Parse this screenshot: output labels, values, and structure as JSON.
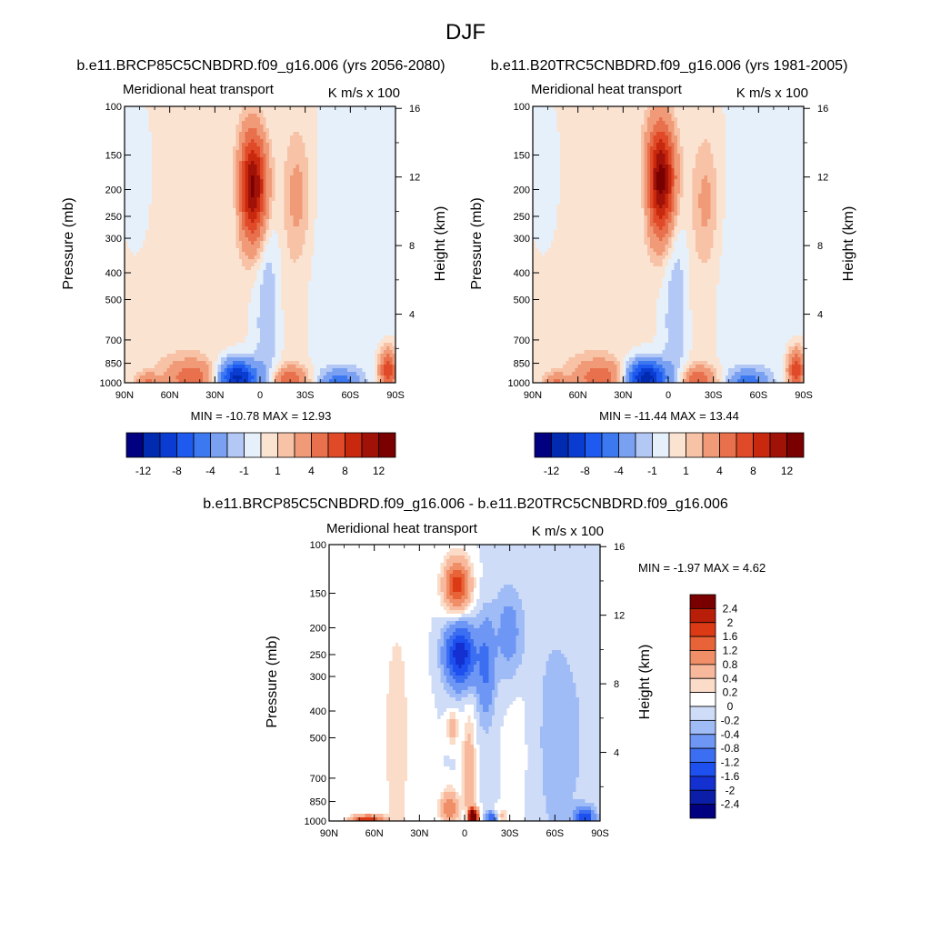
{
  "figure": {
    "title": "DJF"
  },
  "colors": {
    "model_scale": [
      "#000080",
      "#002ab0",
      "#0a3cd2",
      "#1e5af0",
      "#3c78f0",
      "#7aa0f2",
      "#b4c8f5",
      "#e6f0fa",
      "#fbe3d2",
      "#f7c2a6",
      "#f09a78",
      "#e8704c",
      "#e04a28",
      "#c8280e",
      "#a01208",
      "#7a0000"
    ],
    "diff_scale": [
      "#000080",
      "#0a1ea8",
      "#1430d0",
      "#1e50f0",
      "#3c6ef2",
      "#6e96f4",
      "#a0bcf6",
      "#cfdcf8",
      "#ffffff",
      "#fbdcc8",
      "#f7b89c",
      "#f08e68",
      "#e86438",
      "#dc3a14",
      "#b81e08",
      "#7a0000"
    ]
  },
  "chart_data": [
    {
      "type": "heatmap",
      "name": "future",
      "title": "b.e11.BRCP85C5CNBDRD.f09_g16.006 (yrs 2056-2080)",
      "left_string": "Meridional heat transport",
      "right_string": "K m/s x 100",
      "ylabel": "Pressure (mb)",
      "ylabel_right": "Height (km)",
      "x_ticks": [
        "90N",
        "60N",
        "30N",
        "0",
        "30S",
        "60S",
        "90S"
      ],
      "x_tick_values": [
        90,
        60,
        30,
        0,
        -30,
        -60,
        -90
      ],
      "y_ticks": [
        1000,
        850,
        700,
        500,
        400,
        300,
        250,
        200,
        150,
        100
      ],
      "height_ticks": [
        4,
        8,
        12,
        16
      ],
      "xlim": [
        90,
        -90
      ],
      "ylim": [
        1000,
        100
      ],
      "log_y": true,
      "min": -10.78,
      "max": 12.93,
      "minmax_text": "MIN = -10.78  MAX =  12.93",
      "levels": [
        -12,
        -10,
        -8,
        -6,
        -4,
        -2,
        -1,
        0,
        1,
        2,
        4,
        6,
        8,
        10,
        12
      ],
      "colorbar_labels": [
        "-12",
        "-8",
        "-4",
        "-1",
        "1",
        "4",
        "8",
        "12"
      ],
      "colorbar_label_levels": [
        -12,
        -8,
        -4,
        -1,
        1,
        4,
        8,
        12
      ],
      "features": [
        {
          "lat": 5,
          "p": 195,
          "sx": 7,
          "sp": 0.32,
          "v": 12.9
        },
        {
          "lat": -25,
          "p": 210,
          "sx": 6,
          "sp": 0.35,
          "v": 2.2
        },
        {
          "lat": 15,
          "p": 200,
          "sx": 5,
          "sp": 0.28,
          "v": -2.2
        },
        {
          "lat": -5,
          "p": 500,
          "sx": 6,
          "sp": 0.9,
          "v": -2.0
        },
        {
          "lat": 15,
          "p": 960,
          "sx": 9,
          "sp": 0.1,
          "v": -10.8
        },
        {
          "lat": -20,
          "p": 980,
          "sx": 8,
          "sp": 0.08,
          "v": 5.5
        },
        {
          "lat": -53,
          "p": 990,
          "sx": 9,
          "sp": 0.07,
          "v": -4.5
        },
        {
          "lat": -85,
          "p": 900,
          "sx": 4,
          "sp": 0.12,
          "v": 8.0
        },
        {
          "lat": 45,
          "p": 960,
          "sx": 12,
          "sp": 0.1,
          "v": 4.8
        },
        {
          "lat": 75,
          "p": 990,
          "sx": 5,
          "sp": 0.05,
          "v": 3.5
        },
        {
          "lat": -55,
          "p": 450,
          "sx": 26,
          "sp": 0.9,
          "v": -0.8
        },
        {
          "lat": -20,
          "p": 400,
          "sx": 12,
          "sp": 1.1,
          "v": 0.8
        },
        {
          "lat": 55,
          "p": 450,
          "sx": 25,
          "sp": 1.2,
          "v": 0.8
        },
        {
          "lat": 80,
          "p": 200,
          "sx": 8,
          "sp": 0.5,
          "v": -0.8
        }
      ]
    },
    {
      "type": "heatmap",
      "name": "historical",
      "title": "b.e11.B20TRC5CNBDRD.f09_g16.006 (yrs 1981-2005)",
      "left_string": "Meridional heat transport",
      "right_string": "K m/s x 100",
      "ylabel": "Pressure (mb)",
      "ylabel_right": "Height (km)",
      "x_ticks": [
        "90N",
        "60N",
        "30N",
        "0",
        "30S",
        "60S",
        "90S"
      ],
      "x_tick_values": [
        90,
        60,
        30,
        0,
        -30,
        -60,
        -90
      ],
      "y_ticks": [
        1000,
        850,
        700,
        500,
        400,
        300,
        250,
        200,
        150,
        100
      ],
      "height_ticks": [
        4,
        8,
        12,
        16
      ],
      "xlim": [
        90,
        -90
      ],
      "ylim": [
        1000,
        100
      ],
      "log_y": true,
      "min": -11.44,
      "max": 13.44,
      "minmax_text": "MIN = -11.44  MAX =  13.44",
      "levels": [
        -12,
        -10,
        -8,
        -6,
        -4,
        -2,
        -1,
        0,
        1,
        2,
        4,
        6,
        8,
        10,
        12
      ],
      "colorbar_labels": [
        "-12",
        "-8",
        "-4",
        "-1",
        "1",
        "4",
        "8",
        "12"
      ],
      "colorbar_label_levels": [
        -12,
        -8,
        -4,
        -1,
        1,
        4,
        8,
        12
      ],
      "features": [
        {
          "lat": 5,
          "p": 185,
          "sx": 7,
          "sp": 0.33,
          "v": 13.4
        },
        {
          "lat": -25,
          "p": 220,
          "sx": 6,
          "sp": 0.35,
          "v": 2.0
        },
        {
          "lat": 15,
          "p": 200,
          "sx": 5,
          "sp": 0.28,
          "v": -2.0
        },
        {
          "lat": -5,
          "p": 500,
          "sx": 6,
          "sp": 0.9,
          "v": -2.0
        },
        {
          "lat": 15,
          "p": 960,
          "sx": 9,
          "sp": 0.1,
          "v": -11.4
        },
        {
          "lat": -20,
          "p": 980,
          "sx": 8,
          "sp": 0.08,
          "v": 5.5
        },
        {
          "lat": -53,
          "p": 990,
          "sx": 9,
          "sp": 0.07,
          "v": -4.5
        },
        {
          "lat": -85,
          "p": 900,
          "sx": 4,
          "sp": 0.12,
          "v": 7.5
        },
        {
          "lat": 45,
          "p": 960,
          "sx": 12,
          "sp": 0.1,
          "v": 4.8
        },
        {
          "lat": 75,
          "p": 990,
          "sx": 5,
          "sp": 0.05,
          "v": 3.5
        },
        {
          "lat": -55,
          "p": 450,
          "sx": 26,
          "sp": 0.9,
          "v": -0.8
        },
        {
          "lat": -20,
          "p": 400,
          "sx": 12,
          "sp": 1.1,
          "v": 0.8
        },
        {
          "lat": 55,
          "p": 450,
          "sx": 25,
          "sp": 1.2,
          "v": 0.8
        },
        {
          "lat": 80,
          "p": 200,
          "sx": 8,
          "sp": 0.5,
          "v": -0.8
        }
      ]
    },
    {
      "type": "heatmap",
      "name": "difference",
      "title": "b.e11.BRCP85C5CNBDRD.f09_g16.006 - b.e11.B20TRC5CNBDRD.f09_g16.006",
      "left_string": "Meridional heat transport",
      "right_string": "K m/s x 100",
      "ylabel": "Pressure (mb)",
      "ylabel_right": "Height (km)",
      "x_ticks": [
        "90N",
        "60N",
        "30N",
        "0",
        "30S",
        "60S",
        "90S"
      ],
      "x_tick_values": [
        90,
        60,
        30,
        0,
        -30,
        -60,
        -90
      ],
      "y_ticks": [
        1000,
        850,
        700,
        500,
        400,
        300,
        250,
        200,
        150,
        100
      ],
      "height_ticks": [
        4,
        8,
        12,
        16
      ],
      "xlim": [
        90,
        -90
      ],
      "ylim": [
        1000,
        100
      ],
      "log_y": true,
      "min": -1.97,
      "max": 4.62,
      "minmax_text": "MIN =  -1.97  MAX =   4.62",
      "levels": [
        -2.4,
        -2,
        -1.6,
        -1.2,
        -0.8,
        -0.4,
        -0.2,
        0,
        0.2,
        0.4,
        0.8,
        1.2,
        1.6,
        2,
        2.4
      ],
      "colorbar_labels": [
        "2.4",
        "2",
        "1.6",
        "1.2",
        "0.8",
        "0.4",
        "0.2",
        "0",
        "-0.2",
        "-0.4",
        "-0.8",
        "-1.2",
        "-1.6",
        "-2",
        "-2.4"
      ],
      "colorbar_label_levels": [
        2.4,
        2,
        1.6,
        1.2,
        0.8,
        0.4,
        0.2,
        0,
        -0.2,
        -0.4,
        -0.8,
        -1.2,
        -1.6,
        -2,
        -2.4
      ],
      "features": [
        {
          "lat": 5,
          "p": 140,
          "sx": 6,
          "sp": 0.15,
          "v": 1.8
        },
        {
          "lat": 3,
          "p": 250,
          "sx": 7,
          "sp": 0.18,
          "v": -1.9
        },
        {
          "lat": -14,
          "p": 280,
          "sx": 4,
          "sp": 0.3,
          "v": -0.8
        },
        {
          "lat": -30,
          "p": 210,
          "sx": 7,
          "sp": 0.3,
          "v": -0.6
        },
        {
          "lat": 8,
          "p": 460,
          "sx": 2.5,
          "sp": 0.08,
          "v": 0.8
        },
        {
          "lat": -3,
          "p": 650,
          "sx": 3,
          "sp": 0.3,
          "v": 0.7
        },
        {
          "lat": 10,
          "p": 900,
          "sx": 4,
          "sp": 0.1,
          "v": 1.2
        },
        {
          "lat": -5,
          "p": 970,
          "sx": 2.5,
          "sp": 0.05,
          "v": 4.6
        },
        {
          "lat": -2,
          "p": 960,
          "sx": 1.8,
          "sp": 0.04,
          "v": -1.5
        },
        {
          "lat": -18,
          "p": 980,
          "sx": 3,
          "sp": 0.04,
          "v": -1.2
        },
        {
          "lat": -24,
          "p": 970,
          "sx": 3,
          "sp": 0.05,
          "v": 0.5
        },
        {
          "lat": 65,
          "p": 995,
          "sx": 7,
          "sp": 0.03,
          "v": 2.0
        },
        {
          "lat": -80,
          "p": 970,
          "sx": 4,
          "sp": 0.05,
          "v": -1.5
        },
        {
          "lat": -60,
          "p": 500,
          "sx": 25,
          "sp": 1.1,
          "v": -0.25
        },
        {
          "lat": 45,
          "p": 500,
          "sx": 10,
          "sp": 1.2,
          "v": 0.25
        },
        {
          "lat": -35,
          "p": 500,
          "sx": 8,
          "sp": 1.0,
          "v": 0.25
        }
      ]
    }
  ]
}
